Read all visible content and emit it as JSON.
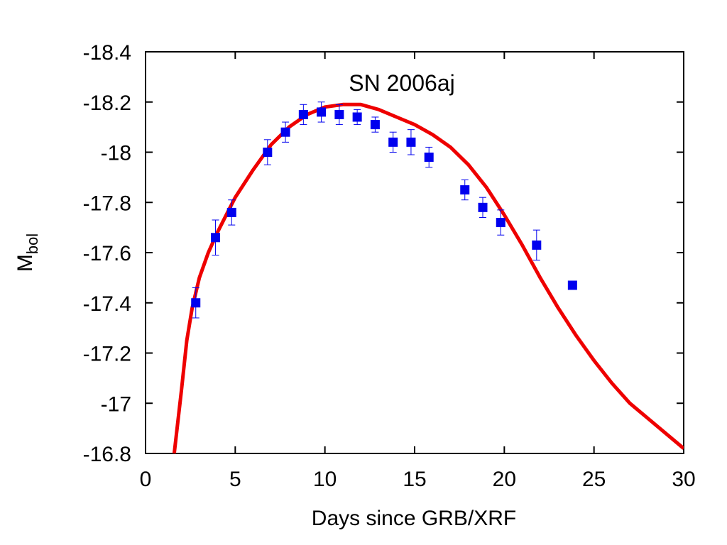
{
  "chart_data": {
    "type": "scatter",
    "title": "SN 2006aj",
    "xlabel": "Days since GRB/XRF",
    "ylabel": "M",
    "ylabel_sub": "bol",
    "xlim": [
      0,
      30
    ],
    "ylim": [
      -16.8,
      -18.4
    ],
    "y_inverted": true,
    "grid": false,
    "x_ticks": [
      0,
      5,
      10,
      15,
      20,
      25,
      30
    ],
    "y_ticks": [
      -18.4,
      -18.2,
      -18,
      -17.8,
      -17.6,
      -17.4,
      -17.2,
      -17,
      -16.8
    ],
    "series": [
      {
        "kind": "points",
        "color": "#0000ee",
        "x": [
          2.8,
          3.9,
          4.8,
          6.8,
          7.8,
          8.8,
          9.8,
          10.8,
          11.8,
          12.8,
          13.8,
          14.8,
          15.8,
          17.8,
          18.8,
          19.8,
          21.8,
          23.8
        ],
        "y": [
          -17.4,
          -17.66,
          -17.76,
          -18.0,
          -18.08,
          -18.15,
          -18.16,
          -18.15,
          -18.14,
          -18.11,
          -18.04,
          -18.04,
          -17.98,
          -17.85,
          -17.78,
          -17.72,
          -17.63,
          -17.47
        ],
        "err": [
          0.06,
          0.07,
          0.05,
          0.05,
          0.04,
          0.04,
          0.04,
          0.04,
          0.03,
          0.03,
          0.04,
          0.05,
          0.04,
          0.04,
          0.04,
          0.05,
          0.06,
          0
        ]
      },
      {
        "kind": "line",
        "color": "#ee0000",
        "x": [
          1.6,
          2.0,
          2.3,
          2.6,
          3.0,
          3.5,
          4.0,
          4.5,
          5.0,
          6.0,
          7.0,
          8.0,
          9.0,
          10.0,
          11.0,
          11.5,
          12.0,
          13.0,
          14.0,
          15.0,
          16.0,
          17.0,
          18.0,
          19.0,
          20.0,
          21.0,
          22.0,
          23.0,
          24.0,
          25.0,
          26.0,
          27.0,
          28.0,
          29.0,
          30.0
        ],
        "y": [
          -16.8,
          -17.05,
          -17.25,
          -17.38,
          -17.5,
          -17.6,
          -17.68,
          -17.75,
          -17.82,
          -17.93,
          -18.03,
          -18.1,
          -18.15,
          -18.18,
          -18.19,
          -18.19,
          -18.19,
          -18.17,
          -18.14,
          -18.11,
          -18.07,
          -18.02,
          -17.95,
          -17.86,
          -17.75,
          -17.63,
          -17.5,
          -17.38,
          -17.27,
          -17.17,
          -17.08,
          -17.0,
          -16.94,
          -16.88,
          -16.82
        ]
      }
    ]
  }
}
